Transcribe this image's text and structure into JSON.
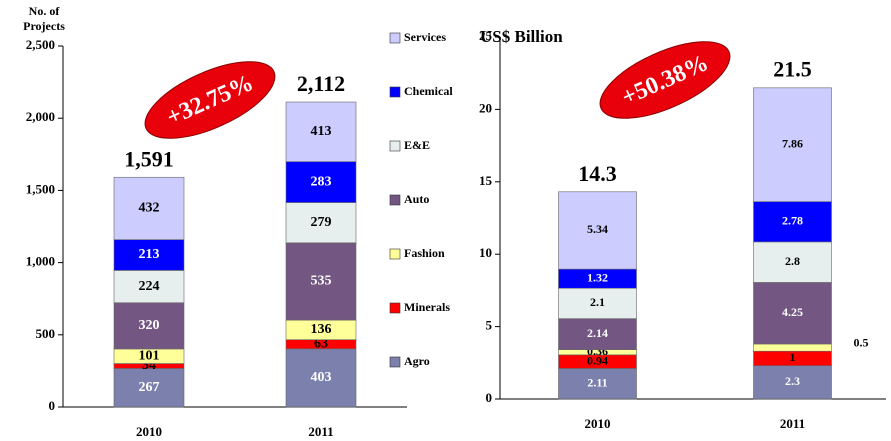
{
  "chart_data": [
    {
      "type": "stacked-bar",
      "title": "No. of Projects",
      "annotation": "+32.75%",
      "categories": [
        "2010",
        "2011"
      ],
      "ylim": [
        0,
        2500
      ],
      "yticks": [
        0,
        500,
        {
          "value": 1000,
          "label": "1,000"
        },
        {
          "value": 1500,
          "label": "1,500"
        },
        {
          "value": 2000,
          "label": "2,000"
        },
        {
          "value": 2500,
          "label": "2,500"
        }
      ],
      "totals": [
        1591,
        2112
      ],
      "total_labels": [
        "1,591",
        "2,112"
      ],
      "series": [
        {
          "name": "Agro",
          "color": "#7b80ad",
          "values": [
            267,
            403
          ]
        },
        {
          "name": "Minerals",
          "color": "#ff0000",
          "values": [
            34,
            63
          ]
        },
        {
          "name": "Fashion",
          "color": "#ffff99",
          "values": [
            101,
            136
          ]
        },
        {
          "name": "Auto",
          "color": "#735782",
          "values": [
            320,
            535
          ]
        },
        {
          "name": "E&E",
          "color": "#e6eeee",
          "values": [
            224,
            279
          ]
        },
        {
          "name": "Chemical",
          "color": "#0000ff",
          "values": [
            213,
            283
          ]
        },
        {
          "name": "Services",
          "color": "#ccccff",
          "values": [
            432,
            413
          ]
        }
      ]
    },
    {
      "type": "stacked-bar",
      "title": "US$ Billion",
      "annotation": "+50.38%",
      "categories": [
        "2010",
        "2011"
      ],
      "ylim": [
        0,
        25
      ],
      "yticks": [
        0,
        5,
        10,
        15,
        20,
        25
      ],
      "totals": [
        14.3,
        21.5
      ],
      "series": [
        {
          "color": "#7b80ad",
          "values": [
            2.11,
            2.3
          ]
        },
        {
          "color": "#ff0000",
          "values": [
            0.94,
            1
          ]
        },
        {
          "color": "#ffff99",
          "values": [
            0.36,
            0.5
          ]
        },
        {
          "color": "#735782",
          "values": [
            2.14,
            4.25
          ]
        },
        {
          "color": "#e6eeee",
          "values": [
            2.1,
            2.8
          ]
        },
        {
          "color": "#0000ff",
          "values": [
            1.32,
            2.78
          ]
        },
        {
          "color": "#ccccff",
          "values": [
            5.34,
            7.86
          ]
        }
      ]
    }
  ]
}
